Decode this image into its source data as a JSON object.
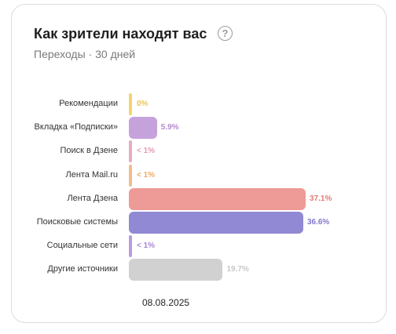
{
  "header": {
    "title": "Как зрители находят вас",
    "help_icon": "question-circle-icon",
    "subtitle": "Переходы · 30 дней"
  },
  "footer": {
    "date": "08.08.2025"
  },
  "chart_data": {
    "type": "bar",
    "orientation": "horizontal",
    "categories": [
      "Рекомендации",
      "Вкладка «Подписки»",
      "Поиск в Дзене",
      "Лента Mail.ru",
      "Лента Дзена",
      "Поисковые системы",
      "Социальные сети",
      "Другие источники"
    ],
    "values": [
      0,
      5.9,
      0.5,
      0.5,
      37.1,
      36.6,
      0.5,
      19.7
    ],
    "value_labels": [
      "0%",
      "5.9%",
      "< 1%",
      "< 1%",
      "37.1%",
      "36.6%",
      "< 1%",
      "19.7%"
    ],
    "colors": [
      "#f5d46a",
      "#c6a2dc",
      "#e9aac3",
      "#f2bd88",
      "#ee9a96",
      "#9189d3",
      "#b99be1",
      "#d1d1d1"
    ],
    "label_colors": [
      "#eec645",
      "#b58bd0",
      "#e29ab8",
      "#eeaa6a",
      "#e57c78",
      "#8179cc",
      "#a987d8",
      "#c8c8c8"
    ],
    "unit": "%",
    "xlim": [
      0,
      37.1
    ],
    "grid": false,
    "legend": "none"
  }
}
